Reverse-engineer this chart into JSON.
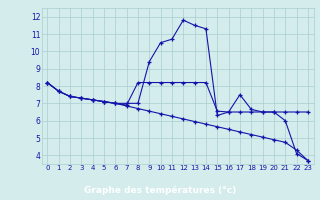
{
  "title": "Graphe des températures (°c)",
  "x_labels": [
    "0",
    "1",
    "2",
    "3",
    "4",
    "5",
    "6",
    "7",
    "8",
    "9",
    "10",
    "11",
    "12",
    "13",
    "14",
    "15",
    "16",
    "17",
    "18",
    "19",
    "20",
    "21",
    "22",
    "23"
  ],
  "x_values": [
    0,
    1,
    2,
    3,
    4,
    5,
    6,
    7,
    8,
    9,
    10,
    11,
    12,
    13,
    14,
    15,
    16,
    17,
    18,
    19,
    20,
    21,
    22,
    23
  ],
  "line_diagonal": [
    8.2,
    7.7,
    7.4,
    7.3,
    7.2,
    7.1,
    7.0,
    6.85,
    6.7,
    6.55,
    6.4,
    6.25,
    6.1,
    5.95,
    5.8,
    5.65,
    5.5,
    5.35,
    5.2,
    5.05,
    4.9,
    4.75,
    4.3,
    3.7
  ],
  "line_peak": [
    8.2,
    7.7,
    7.4,
    7.3,
    7.2,
    7.1,
    7.0,
    7.0,
    7.0,
    9.4,
    10.5,
    10.7,
    11.8,
    11.5,
    11.3,
    6.3,
    6.5,
    7.5,
    6.65,
    6.5,
    6.5,
    6.0,
    4.1,
    3.7
  ],
  "line_flat": [
    8.2,
    7.7,
    7.4,
    7.3,
    7.2,
    7.1,
    7.0,
    6.9,
    8.2,
    8.2,
    8.2,
    8.2,
    8.2,
    8.2,
    8.2,
    6.55,
    6.5,
    6.5,
    6.5,
    6.5,
    6.5,
    6.5,
    6.5,
    6.5
  ],
  "ylim": [
    3.5,
    12.5
  ],
  "xlim": [
    -0.5,
    23.5
  ],
  "yticks": [
    4,
    5,
    6,
    7,
    8,
    9,
    10,
    11,
    12
  ],
  "line_color": "#1414aa",
  "bg_color": "#d4ecec",
  "grid_color": "#aacfcf",
  "xlabel_bg": "#2222aa",
  "xlabel_text_color": "#ffffff"
}
